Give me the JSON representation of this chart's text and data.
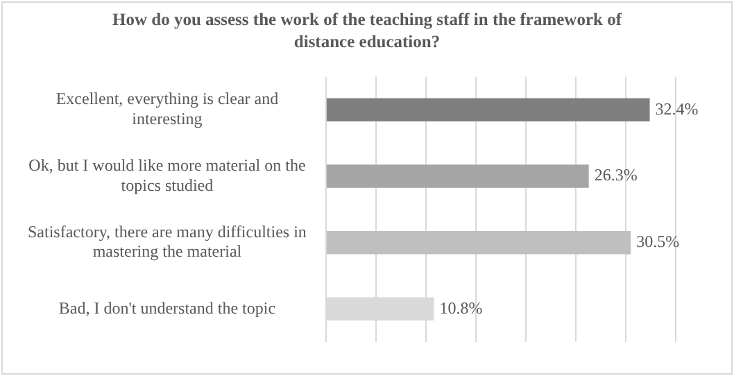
{
  "chart_data": {
    "type": "bar",
    "orientation": "horizontal",
    "title": "How do you assess the work of the teaching staff in the framework of distance education?",
    "categories": [
      "Excellent, everything is clear and interesting",
      "Ok, but I would like more material on the topics studied",
      "Satisfactory, there are many difficulties in mastering the material",
      "Bad, I don't understand the topic"
    ],
    "values": [
      32.4,
      26.3,
      30.5,
      10.8
    ],
    "colors": [
      "#7f7f7f",
      "#a5a5a5",
      "#bfbfbf",
      "#d9d9d9"
    ],
    "value_labels": [
      "32.4%",
      "26.3%",
      "30.5%",
      "10.8%"
    ],
    "xlim": [
      0,
      35
    ],
    "xticks": [
      {
        "value": 0,
        "label": null
      },
      {
        "value": 5,
        "label": null
      },
      {
        "value": 10,
        "label": null
      },
      {
        "value": 15,
        "label": null
      },
      {
        "value": 20,
        "label": null
      },
      {
        "value": 25,
        "label": null
      },
      {
        "value": 30,
        "label": null
      },
      {
        "value": 35,
        "label": null
      }
    ],
    "grid": "x",
    "legend": false
  }
}
